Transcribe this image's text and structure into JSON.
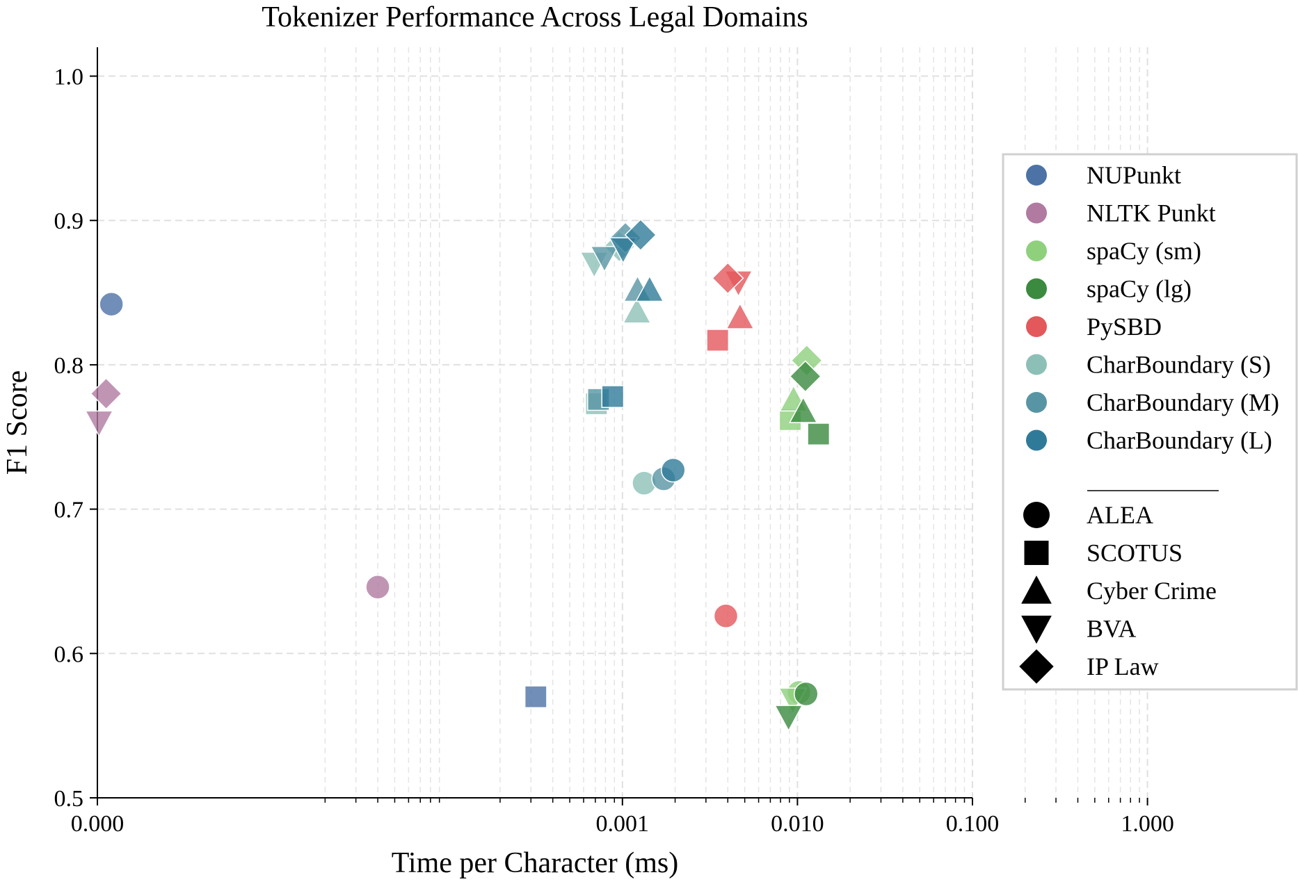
{
  "chart_data": {
    "type": "scatter",
    "title": "Tokenizer Performance Across Legal Domains",
    "xlabel": "Time per Character (ms)",
    "ylabel": "F1 Score",
    "xscale": "symlog",
    "xlim": [
      0,
      1
    ],
    "ylim": [
      0.5,
      1.02
    ],
    "grid": true,
    "legend_position": "right",
    "xticks": [
      {
        "value": 0,
        "label": "0.000"
      },
      {
        "value": 0.001,
        "label": "0.001"
      },
      {
        "value": 0.01,
        "label": "0.010"
      },
      {
        "value": 0.1,
        "label": "0.100"
      },
      {
        "value": 1,
        "label": "1.000"
      }
    ],
    "yticks": [
      {
        "value": 0.5,
        "label": "0.5"
      },
      {
        "value": 0.6,
        "label": "0.6"
      },
      {
        "value": 0.7,
        "label": "0.7"
      },
      {
        "value": 0.8,
        "label": "0.8"
      },
      {
        "value": 0.9,
        "label": "0.9"
      },
      {
        "value": 1.0,
        "label": "1.0"
      }
    ],
    "series": [
      {
        "name": "NUPunkt",
        "color": "#4c72a6",
        "points": [
          {
            "domain": "ALEA",
            "x": 8e-07,
            "y": 0.842
          },
          {
            "domain": "SCOTUS",
            "x": 0.00032,
            "y": 0.57
          }
        ]
      },
      {
        "name": "NLTK Punkt",
        "color": "#b07aa1",
        "points": [
          {
            "domain": "ALEA",
            "x": 4e-05,
            "y": 0.646
          },
          {
            "domain": "IP Law",
            "x": 5e-07,
            "y": 0.78
          },
          {
            "domain": "BVA",
            "x": 1e-07,
            "y": 0.76
          }
        ]
      },
      {
        "name": "spaCy (sm)",
        "color": "#8fd07d",
        "points": [
          {
            "domain": "ALEA",
            "x": 0.0102,
            "y": 0.573
          },
          {
            "domain": "SCOTUS",
            "x": 0.0091,
            "y": 0.762
          },
          {
            "domain": "Cyber Crime",
            "x": 0.0095,
            "y": 0.776
          },
          {
            "domain": "BVA",
            "x": 0.0094,
            "y": 0.568
          },
          {
            "domain": "IP Law",
            "x": 0.0113,
            "y": 0.803
          }
        ]
      },
      {
        "name": "spaCy (lg)",
        "color": "#3a8a3f",
        "points": [
          {
            "domain": "ALEA",
            "x": 0.0112,
            "y": 0.572
          },
          {
            "domain": "SCOTUS",
            "x": 0.0132,
            "y": 0.752
          },
          {
            "domain": "Cyber Crime",
            "x": 0.0108,
            "y": 0.768
          },
          {
            "domain": "BVA",
            "x": 0.0089,
            "y": 0.556
          },
          {
            "domain": "IP Law",
            "x": 0.0111,
            "y": 0.792
          }
        ]
      },
      {
        "name": "PySBD",
        "color": "#e3585b",
        "points": [
          {
            "domain": "ALEA",
            "x": 0.0039,
            "y": 0.626
          },
          {
            "domain": "SCOTUS",
            "x": 0.0035,
            "y": 0.817
          },
          {
            "domain": "Cyber Crime",
            "x": 0.0047,
            "y": 0.833
          },
          {
            "domain": "BVA",
            "x": 0.0046,
            "y": 0.857
          },
          {
            "domain": "IP Law",
            "x": 0.004,
            "y": 0.86
          }
        ]
      },
      {
        "name": "CharBoundary (S)",
        "color": "#8cc0b6",
        "points": [
          {
            "domain": "ALEA",
            "x": 0.00133,
            "y": 0.718
          },
          {
            "domain": "SCOTUS",
            "x": 0.00071,
            "y": 0.773
          },
          {
            "domain": "Cyber Crime",
            "x": 0.00121,
            "y": 0.837
          },
          {
            "domain": "BVA",
            "x": 0.00069,
            "y": 0.87
          },
          {
            "domain": "IP Law",
            "x": 0.00096,
            "y": 0.882
          }
        ]
      },
      {
        "name": "CharBoundary (M)",
        "color": "#5895a4",
        "points": [
          {
            "domain": "ALEA",
            "x": 0.00172,
            "y": 0.721
          },
          {
            "domain": "SCOTUS",
            "x": 0.00073,
            "y": 0.776
          },
          {
            "domain": "Cyber Crime",
            "x": 0.00122,
            "y": 0.852
          },
          {
            "domain": "BVA",
            "x": 0.00079,
            "y": 0.874
          },
          {
            "domain": "IP Law",
            "x": 0.00104,
            "y": 0.888
          }
        ]
      },
      {
        "name": "CharBoundary (L)",
        "color": "#2f7a99",
        "points": [
          {
            "domain": "ALEA",
            "x": 0.00195,
            "y": 0.727
          },
          {
            "domain": "SCOTUS",
            "x": 0.00088,
            "y": 0.778
          },
          {
            "domain": "Cyber Crime",
            "x": 0.00143,
            "y": 0.852
          },
          {
            "domain": "BVA",
            "x": 0.00101,
            "y": 0.88
          },
          {
            "domain": "IP Law",
            "x": 0.00127,
            "y": 0.89
          }
        ]
      }
    ],
    "domains": [
      {
        "name": "ALEA",
        "marker": "circle"
      },
      {
        "name": "SCOTUS",
        "marker": "square"
      },
      {
        "name": "Cyber Crime",
        "marker": "triangle-up"
      },
      {
        "name": "BVA",
        "marker": "triangle-down"
      },
      {
        "name": "IP Law",
        "marker": "diamond"
      }
    ]
  }
}
